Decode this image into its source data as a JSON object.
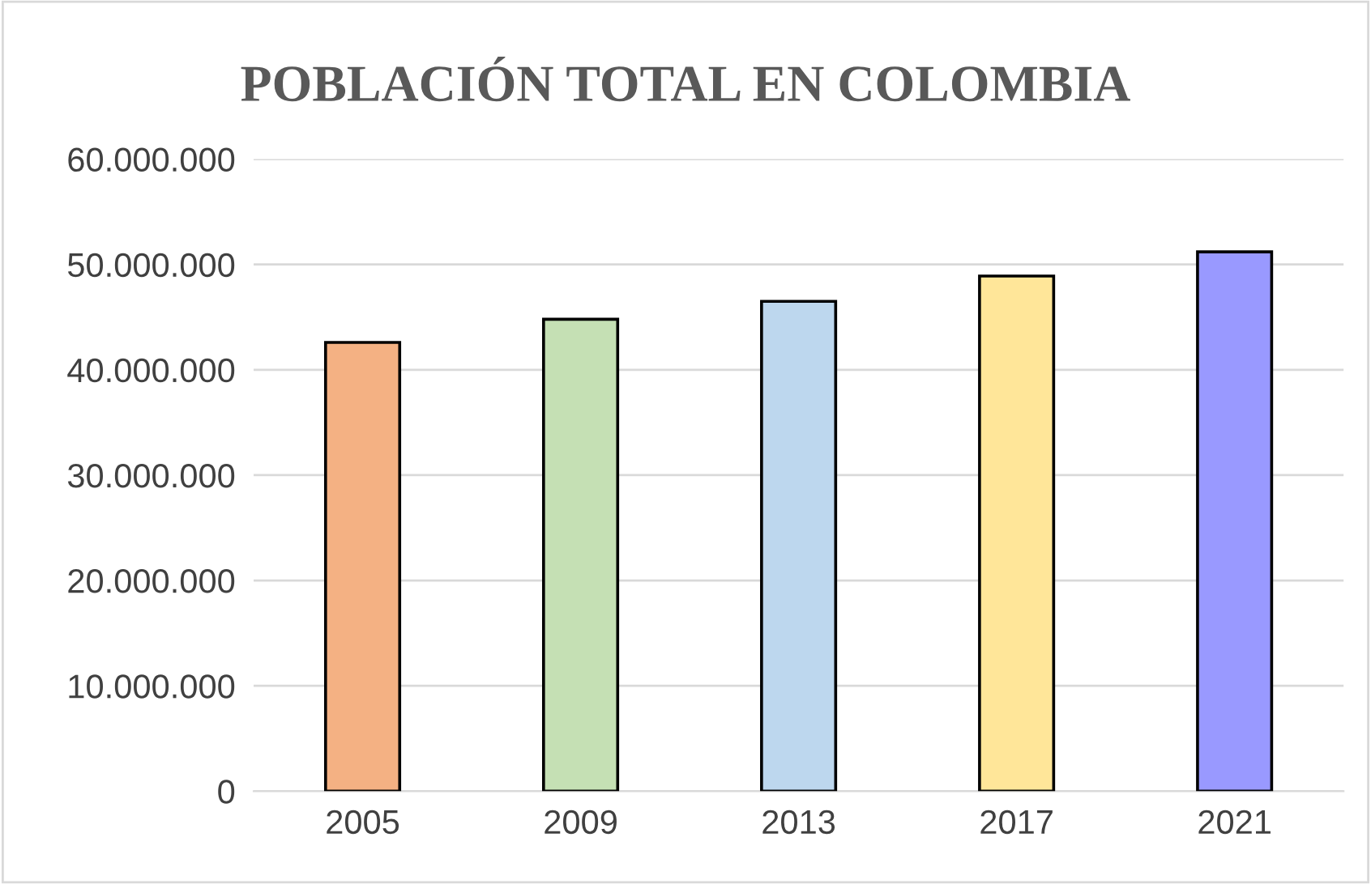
{
  "chart_data": {
    "type": "bar",
    "title": "POBLACIÓN TOTAL EN COLOMBIA",
    "categories": [
      "2005",
      "2009",
      "2013",
      "2017",
      "2021"
    ],
    "values": [
      42600000,
      44800000,
      46500000,
      48900000,
      51200000
    ],
    "colors": [
      "#f4b183",
      "#c5e0b4",
      "#bdd7ee",
      "#ffe699",
      "#9999ff"
    ],
    "ylim": [
      0,
      60000000
    ],
    "yticks": [
      0,
      {
        "value": 10000000,
        "label": "10.000.000"
      },
      {
        "value": 20000000,
        "label": "20.000.000"
      },
      {
        "value": 30000000,
        "label": "30.000.000"
      },
      {
        "value": 40000000,
        "label": "40.000.000"
      },
      {
        "value": 50000000,
        "label": "50.000.000"
      },
      {
        "value": 60000000,
        "label": "60.000.000"
      }
    ],
    "grid": "y",
    "legend": false
  }
}
